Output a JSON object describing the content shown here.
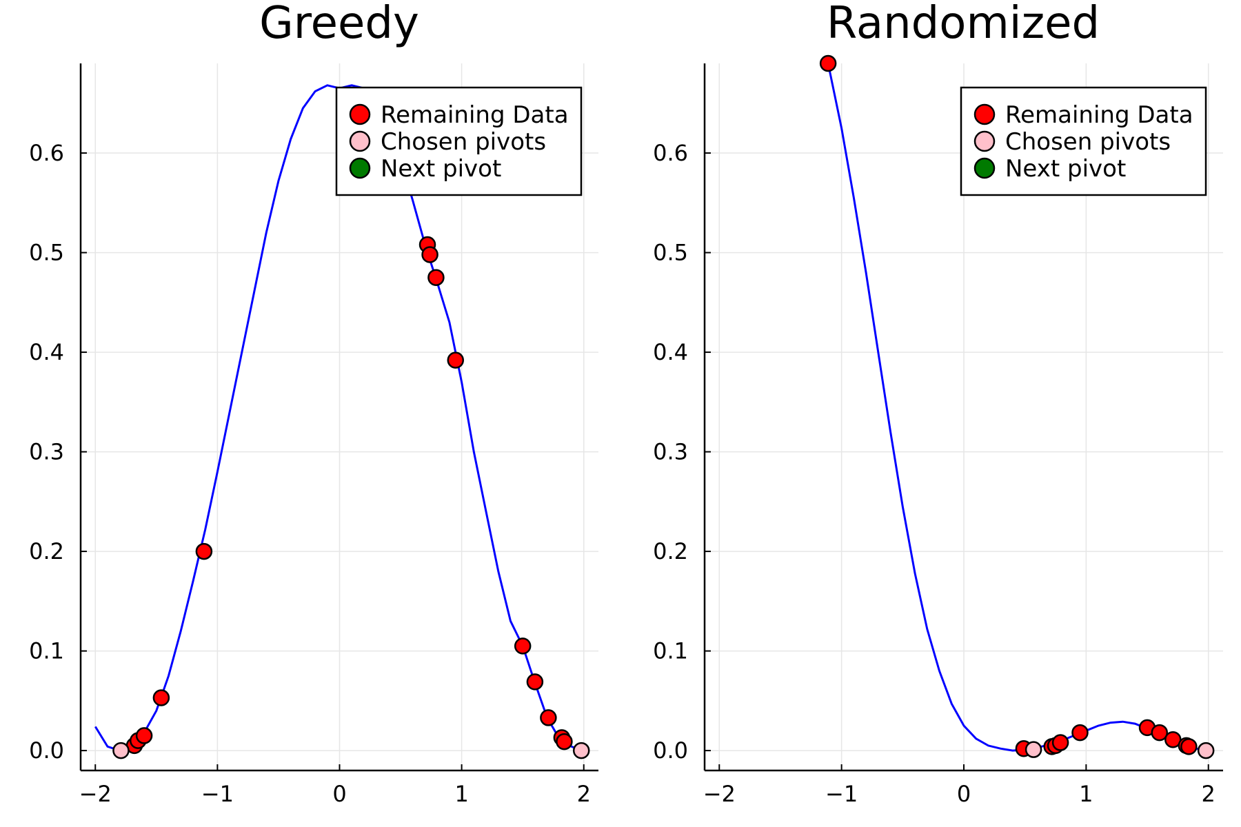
{
  "legend": {
    "remaining_label": "Remaining Data",
    "chosen_label": "Chosen pivots",
    "next_label": "Next pivot",
    "remaining_color": "#ff0000",
    "chosen_color": "#ffc0cb",
    "next_color": "#007a00",
    "placement": "top-right"
  },
  "curve_color": "#0000ff",
  "chart_data": [
    {
      "type": "scatter",
      "title": "Greedy",
      "xlabel": "",
      "ylabel": "",
      "xlim": [
        -2.12,
        2.12
      ],
      "ylim": [
        -0.02,
        0.69
      ],
      "xticks": [
        -2,
        -1,
        0,
        1,
        2
      ],
      "xtick_labels": [
        "−2",
        "−1",
        "0",
        "1",
        "2"
      ],
      "yticks": [
        0.0,
        0.1,
        0.2,
        0.3,
        0.4,
        0.5,
        0.6
      ],
      "ytick_labels": [
        "0.0",
        "0.1",
        "0.2",
        "0.3",
        "0.4",
        "0.5",
        "0.6"
      ],
      "grid": true,
      "curve": {
        "x": [
          -2.0,
          -1.9,
          -1.8,
          -1.7,
          -1.6,
          -1.5,
          -1.4,
          -1.3,
          -1.2,
          -1.1,
          -1.0,
          -0.9,
          -0.8,
          -0.7,
          -0.6,
          -0.5,
          -0.4,
          -0.3,
          -0.2,
          -0.1,
          0.0,
          0.1,
          0.2,
          0.3,
          0.4,
          0.5,
          0.6,
          0.7,
          0.8,
          0.9,
          1.0,
          1.1,
          1.2,
          1.3,
          1.4,
          1.5,
          1.6,
          1.7,
          1.8,
          1.9,
          1.98
        ],
        "y": [
          0.024,
          0.004,
          0.0,
          0.005,
          0.018,
          0.04,
          0.075,
          0.12,
          0.17,
          0.222,
          0.28,
          0.34,
          0.4,
          0.46,
          0.52,
          0.572,
          0.614,
          0.645,
          0.662,
          0.668,
          0.665,
          0.668,
          0.665,
          0.652,
          0.628,
          0.594,
          0.552,
          0.508,
          0.47,
          0.43,
          0.37,
          0.3,
          0.24,
          0.18,
          0.13,
          0.105,
          0.068,
          0.033,
          0.012,
          0.004,
          0.0
        ]
      },
      "remaining": [
        {
          "x": -1.68,
          "y": 0.005
        },
        {
          "x": -1.65,
          "y": 0.01
        },
        {
          "x": -1.6,
          "y": 0.015
        },
        {
          "x": -1.46,
          "y": 0.053
        },
        {
          "x": -1.11,
          "y": 0.2
        },
        {
          "x": 0.72,
          "y": 0.508
        },
        {
          "x": 0.74,
          "y": 0.498
        },
        {
          "x": 0.79,
          "y": 0.475
        },
        {
          "x": 0.95,
          "y": 0.392
        },
        {
          "x": 1.5,
          "y": 0.105
        },
        {
          "x": 1.6,
          "y": 0.069
        },
        {
          "x": 1.71,
          "y": 0.033
        },
        {
          "x": 1.82,
          "y": 0.013
        },
        {
          "x": 1.84,
          "y": 0.009
        }
      ],
      "chosen": [
        {
          "x": -1.79,
          "y": 0.0
        },
        {
          "x": 1.98,
          "y": 0.0
        }
      ],
      "next": []
    },
    {
      "type": "scatter",
      "title": "Randomized",
      "xlabel": "",
      "ylabel": "",
      "xlim": [
        -2.12,
        2.12
      ],
      "ylim": [
        -0.02,
        0.69
      ],
      "xticks": [
        -2,
        -1,
        0,
        1,
        2
      ],
      "xtick_labels": [
        "−2",
        "−1",
        "0",
        "1",
        "2"
      ],
      "yticks": [
        0.0,
        0.1,
        0.2,
        0.3,
        0.4,
        0.5,
        0.6
      ],
      "ytick_labels": [
        "0.0",
        "0.1",
        "0.2",
        "0.3",
        "0.4",
        "0.5",
        "0.6"
      ],
      "grid": true,
      "curve": {
        "x": [
          -1.11,
          -1.0,
          -0.9,
          -0.8,
          -0.7,
          -0.6,
          -0.5,
          -0.4,
          -0.3,
          -0.2,
          -0.1,
          0.0,
          0.1,
          0.2,
          0.3,
          0.4,
          0.5,
          0.6,
          0.7,
          0.8,
          0.9,
          1.0,
          1.1,
          1.2,
          1.3,
          1.4,
          1.5,
          1.6,
          1.7,
          1.8,
          1.9,
          1.98
        ],
        "y": [
          0.69,
          0.625,
          0.555,
          0.48,
          0.4,
          0.32,
          0.245,
          0.178,
          0.122,
          0.08,
          0.047,
          0.025,
          0.012,
          0.005,
          0.002,
          0.0,
          0.001,
          0.003,
          0.006,
          0.01,
          0.015,
          0.02,
          0.025,
          0.028,
          0.029,
          0.027,
          0.022,
          0.016,
          0.01,
          0.005,
          0.002,
          0.0
        ]
      },
      "remaining": [
        {
          "x": -1.11,
          "y": 0.69
        },
        {
          "x": 0.49,
          "y": 0.002
        },
        {
          "x": 0.72,
          "y": 0.004
        },
        {
          "x": 0.75,
          "y": 0.005
        },
        {
          "x": 0.79,
          "y": 0.008
        },
        {
          "x": 0.95,
          "y": 0.018
        },
        {
          "x": 1.5,
          "y": 0.023
        },
        {
          "x": 1.6,
          "y": 0.018
        },
        {
          "x": 1.71,
          "y": 0.011
        },
        {
          "x": 1.82,
          "y": 0.005
        },
        {
          "x": 1.84,
          "y": 0.004
        }
      ],
      "chosen": [
        {
          "x": 0.57,
          "y": 0.001
        },
        {
          "x": 1.98,
          "y": 0.0
        }
      ],
      "next": []
    }
  ]
}
